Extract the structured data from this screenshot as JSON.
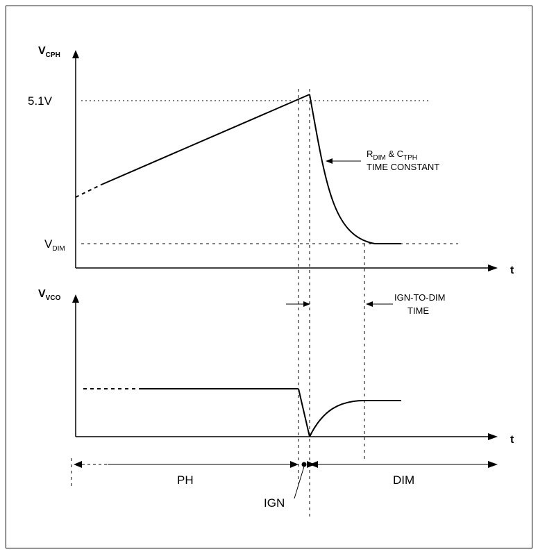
{
  "top_plot": {
    "y_axis_label": "V",
    "y_axis_label_sub": "CPH",
    "x_axis_label": "t",
    "level_high": "5.1V",
    "level_low": "V",
    "level_low_sub": "DIM",
    "annotation_r": "R",
    "annotation_r_sub": "DIM",
    "annotation_amp": " & C",
    "annotation_c_sub": "TPH",
    "annotation_line2": "TIME CONSTANT"
  },
  "bottom_plot": {
    "y_axis_label": "V",
    "y_axis_label_sub": "VCO",
    "x_axis_label": "t",
    "ign_to_dim_line1": "IGN-TO-DIM",
    "ign_to_dim_line2": "TIME"
  },
  "phases": {
    "ph": "PH",
    "dim": "DIM",
    "ign": "IGN"
  }
}
